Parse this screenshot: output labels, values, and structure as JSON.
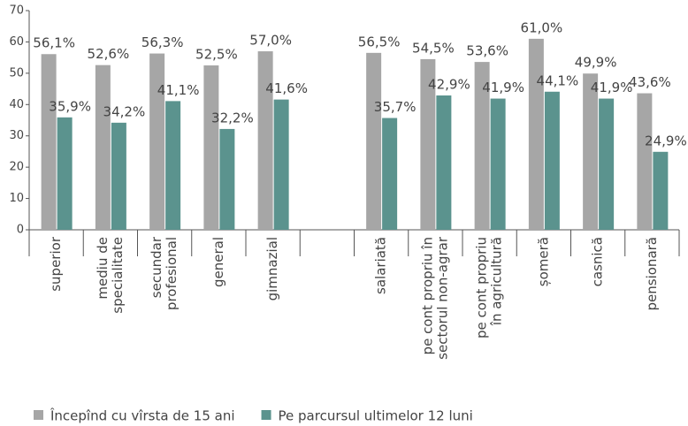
{
  "chart_data": {
    "type": "bar",
    "categories": [
      [
        "superior"
      ],
      [
        "mediu de",
        "specialitate"
      ],
      [
        "secundar",
        "profesional"
      ],
      [
        "general"
      ],
      [
        "gimnazial"
      ],
      null,
      [
        "salariată"
      ],
      [
        "pe cont propriu în",
        "sectorul non-agrar"
      ],
      [
        "pe cont propriu",
        "în agricultură"
      ],
      [
        "șomeră"
      ],
      [
        "casnică"
      ],
      [
        "pensionară"
      ]
    ],
    "series": [
      {
        "name": "Începînd cu vîrsta de 15 ani",
        "color": "#a6a6a6",
        "values": [
          56.1,
          52.6,
          56.3,
          52.5,
          57.0,
          null,
          56.5,
          54.5,
          53.6,
          61.0,
          49.9,
          43.6
        ],
        "value_labels": [
          "56,1%",
          "52,6%",
          "56,3%",
          "52,5%",
          "57,0%",
          null,
          "56,5%",
          "54,5%",
          "53,6%",
          "61,0%",
          "49,9%",
          "43,6%"
        ]
      },
      {
        "name": "Pe parcursul ultimelor 12 luni",
        "color": "#5b938e",
        "values": [
          35.9,
          34.2,
          41.1,
          32.2,
          41.6,
          null,
          35.7,
          42.9,
          41.9,
          44.1,
          41.9,
          24.9
        ],
        "value_labels": [
          "35,9%",
          "34,2%",
          "41,1%",
          "32,2%",
          "41,6%",
          null,
          "35,7%",
          "42,9%",
          "41,9%",
          "44,1%",
          "41,9%",
          "24,9%"
        ]
      }
    ],
    "ylim": [
      0,
      70
    ],
    "yticks": [
      0,
      10,
      20,
      30,
      40,
      50,
      60,
      70
    ],
    "grid": false,
    "legend": "bottom-left"
  }
}
